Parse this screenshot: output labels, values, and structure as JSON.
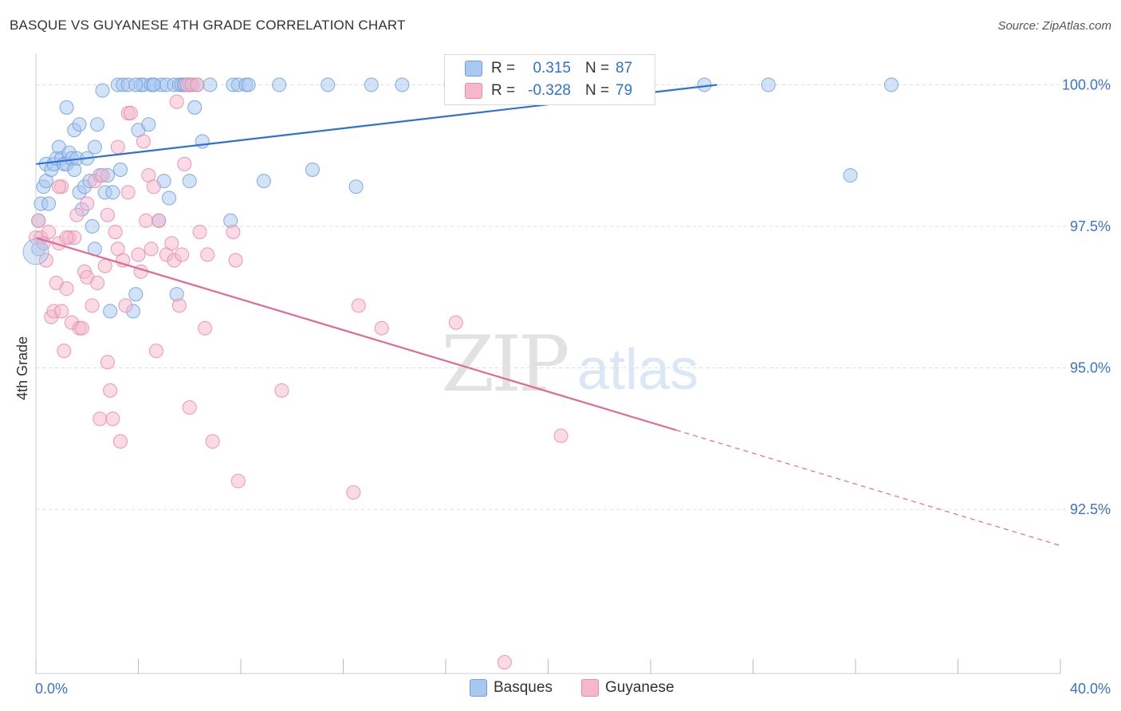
{
  "title": "BASQUE VS GUYANESE 4TH GRADE CORRELATION CHART",
  "source": "Source: ZipAtlas.com",
  "watermark": {
    "zip": "ZIP",
    "atlas": "atlas"
  },
  "legend": [
    {
      "swatch_color": "#a8c8f0",
      "r_label": "R =",
      "r_value": "0.315",
      "n_label": "N =",
      "n_value": "87"
    },
    {
      "swatch_color": "#f5b8cb",
      "r_label": "R =",
      "r_value": "-0.328",
      "n_label": "N =",
      "n_value": "79"
    }
  ],
  "bottom_legend": [
    {
      "label": "Basques",
      "color": "#a8c8f0"
    },
    {
      "label": "Guyanese",
      "color": "#f5b8cb"
    }
  ],
  "colors": {
    "basques_fill": "#a8c8f0",
    "basques_stroke": "#6f9fde",
    "basques_line": "#2f6fd6",
    "guyanese_fill": "#f5b8cb",
    "guyanese_stroke": "#e88aa8",
    "guyanese_line": "#e06a93",
    "axis_text": "#3a72d0",
    "grid": "#dcdcdc"
  },
  "chart_data": {
    "type": "scatter",
    "title": "BASQUE VS GUYANESE 4TH GRADE CORRELATION CHART",
    "xlabel": "",
    "ylabel": "4th Grade",
    "xlim": [
      0,
      40
    ],
    "ylim": [
      89.6,
      100.4
    ],
    "x_tick_labels": [
      "0.0%",
      "40.0%"
    ],
    "y_ticks": [
      100.0,
      97.5,
      95.0,
      92.5
    ],
    "y_tick_labels": [
      "100.0%",
      "97.5%",
      "95.0%",
      "92.5%"
    ],
    "grid": true,
    "legend_position": "top-center",
    "series": [
      {
        "name": "Basques",
        "trend": {
          "x": [
            0.0,
            26.6
          ],
          "y": [
            98.6,
            100.0
          ],
          "dashed_to_x": null
        },
        "points": [
          [
            0.1,
            97.1
          ],
          [
            0.1,
            97.6
          ],
          [
            0.2,
            97.9
          ],
          [
            0.3,
            98.2
          ],
          [
            0.4,
            98.3
          ],
          [
            0.4,
            98.6
          ],
          [
            0.5,
            97.9
          ],
          [
            0.6,
            98.5
          ],
          [
            0.7,
            98.6
          ],
          [
            0.8,
            98.7
          ],
          [
            0.9,
            98.9
          ],
          [
            1.0,
            98.7
          ],
          [
            1.1,
            98.6
          ],
          [
            1.2,
            98.6
          ],
          [
            1.2,
            99.6
          ],
          [
            1.3,
            98.8
          ],
          [
            1.4,
            98.7
          ],
          [
            1.5,
            98.5
          ],
          [
            1.5,
            99.2
          ],
          [
            1.6,
            98.7
          ],
          [
            1.7,
            98.1
          ],
          [
            1.7,
            99.3
          ],
          [
            1.8,
            97.8
          ],
          [
            1.9,
            98.2
          ],
          [
            2.0,
            98.7
          ],
          [
            2.1,
            98.3
          ],
          [
            2.2,
            97.5
          ],
          [
            2.3,
            97.1
          ],
          [
            2.3,
            98.9
          ],
          [
            2.4,
            99.3
          ],
          [
            2.5,
            98.4
          ],
          [
            2.6,
            99.9
          ],
          [
            2.7,
            98.1
          ],
          [
            2.8,
            98.4
          ],
          [
            2.9,
            96.0
          ],
          [
            3.0,
            98.1
          ],
          [
            3.2,
            100.0
          ],
          [
            3.3,
            98.5
          ],
          [
            3.4,
            100.0
          ],
          [
            3.6,
            100.0
          ],
          [
            3.8,
            96.0
          ],
          [
            3.9,
            96.3
          ],
          [
            4.0,
            99.2
          ],
          [
            4.1,
            100.0
          ],
          [
            4.2,
            100.0
          ],
          [
            4.4,
            99.3
          ],
          [
            4.5,
            100.0
          ],
          [
            4.6,
            100.0
          ],
          [
            4.8,
            97.6
          ],
          [
            4.9,
            100.0
          ],
          [
            5.0,
            98.3
          ],
          [
            5.1,
            100.0
          ],
          [
            5.2,
            98.0
          ],
          [
            5.4,
            100.0
          ],
          [
            5.5,
            96.3
          ],
          [
            5.6,
            100.0
          ],
          [
            5.7,
            100.0
          ],
          [
            5.8,
            100.0
          ],
          [
            5.9,
            100.0
          ],
          [
            6.0,
            98.3
          ],
          [
            6.1,
            100.0
          ],
          [
            6.2,
            99.6
          ],
          [
            6.3,
            100.0
          ],
          [
            6.5,
            99.0
          ],
          [
            6.8,
            100.0
          ],
          [
            7.6,
            97.6
          ],
          [
            7.7,
            100.0
          ],
          [
            7.9,
            100.0
          ],
          [
            8.2,
            100.0
          ],
          [
            8.3,
            100.0
          ],
          [
            8.9,
            98.3
          ],
          [
            9.5,
            100.0
          ],
          [
            10.8,
            98.5
          ],
          [
            11.4,
            100.0
          ],
          [
            12.5,
            98.2
          ],
          [
            13.1,
            100.0
          ],
          [
            14.3,
            100.0
          ],
          [
            16.3,
            100.0
          ],
          [
            20.6,
            100.0
          ],
          [
            26.1,
            100.0
          ],
          [
            28.6,
            100.0
          ],
          [
            31.8,
            98.4
          ],
          [
            33.4,
            100.0
          ],
          [
            6.0,
            100.0
          ],
          [
            4.6,
            100.0
          ],
          [
            5.8,
            100.0
          ],
          [
            3.9,
            100.0
          ]
        ]
      },
      {
        "name": "Guyanese",
        "trend": {
          "x": [
            0.0,
            25.0
          ],
          "y": [
            97.3,
            93.9
          ],
          "dashed_to_x": 40.0
        },
        "points": [
          [
            0.0,
            97.3
          ],
          [
            0.1,
            97.6
          ],
          [
            0.2,
            97.3
          ],
          [
            0.3,
            97.2
          ],
          [
            0.4,
            96.9
          ],
          [
            0.5,
            97.4
          ],
          [
            0.6,
            95.9
          ],
          [
            0.7,
            96.0
          ],
          [
            0.8,
            96.5
          ],
          [
            0.9,
            97.2
          ],
          [
            1.0,
            98.2
          ],
          [
            1.0,
            96.0
          ],
          [
            1.1,
            95.3
          ],
          [
            1.2,
            96.4
          ],
          [
            1.3,
            97.3
          ],
          [
            1.4,
            95.8
          ],
          [
            1.5,
            97.3
          ],
          [
            1.6,
            97.7
          ],
          [
            1.7,
            95.7
          ],
          [
            1.8,
            95.7
          ],
          [
            1.9,
            96.7
          ],
          [
            2.0,
            96.6
          ],
          [
            2.0,
            97.9
          ],
          [
            2.2,
            96.1
          ],
          [
            2.3,
            98.3
          ],
          [
            2.4,
            96.5
          ],
          [
            2.5,
            94.1
          ],
          [
            2.6,
            98.4
          ],
          [
            2.7,
            96.8
          ],
          [
            2.8,
            97.7
          ],
          [
            2.8,
            95.1
          ],
          [
            2.9,
            94.6
          ],
          [
            3.0,
            94.1
          ],
          [
            3.1,
            97.4
          ],
          [
            3.2,
            97.1
          ],
          [
            3.2,
            98.9
          ],
          [
            3.3,
            93.7
          ],
          [
            3.4,
            96.9
          ],
          [
            3.5,
            96.1
          ],
          [
            3.6,
            98.1
          ],
          [
            3.6,
            99.5
          ],
          [
            3.7,
            99.5
          ],
          [
            4.0,
            97.0
          ],
          [
            4.1,
            96.7
          ],
          [
            4.2,
            99.0
          ],
          [
            4.3,
            97.6
          ],
          [
            4.4,
            98.4
          ],
          [
            4.5,
            97.1
          ],
          [
            4.6,
            98.2
          ],
          [
            4.7,
            95.3
          ],
          [
            4.8,
            97.6
          ],
          [
            5.1,
            97.0
          ],
          [
            5.3,
            97.2
          ],
          [
            5.4,
            96.9
          ],
          [
            5.5,
            99.7
          ],
          [
            5.6,
            96.1
          ],
          [
            5.7,
            97.0
          ],
          [
            5.8,
            98.6
          ],
          [
            5.9,
            100.0
          ],
          [
            6.0,
            94.3
          ],
          [
            6.1,
            100.0
          ],
          [
            6.3,
            100.0
          ],
          [
            6.4,
            97.4
          ],
          [
            6.6,
            95.7
          ],
          [
            6.7,
            97.0
          ],
          [
            6.9,
            93.7
          ],
          [
            7.7,
            97.4
          ],
          [
            7.8,
            96.9
          ],
          [
            7.9,
            93.0
          ],
          [
            9.6,
            94.6
          ],
          [
            12.4,
            92.8
          ],
          [
            12.6,
            96.1
          ],
          [
            13.5,
            95.7
          ],
          [
            16.2,
            100.0
          ],
          [
            16.4,
            95.8
          ],
          [
            18.3,
            89.8
          ],
          [
            20.5,
            93.8
          ],
          [
            1.2,
            97.3
          ],
          [
            0.9,
            98.2
          ]
        ]
      }
    ]
  }
}
